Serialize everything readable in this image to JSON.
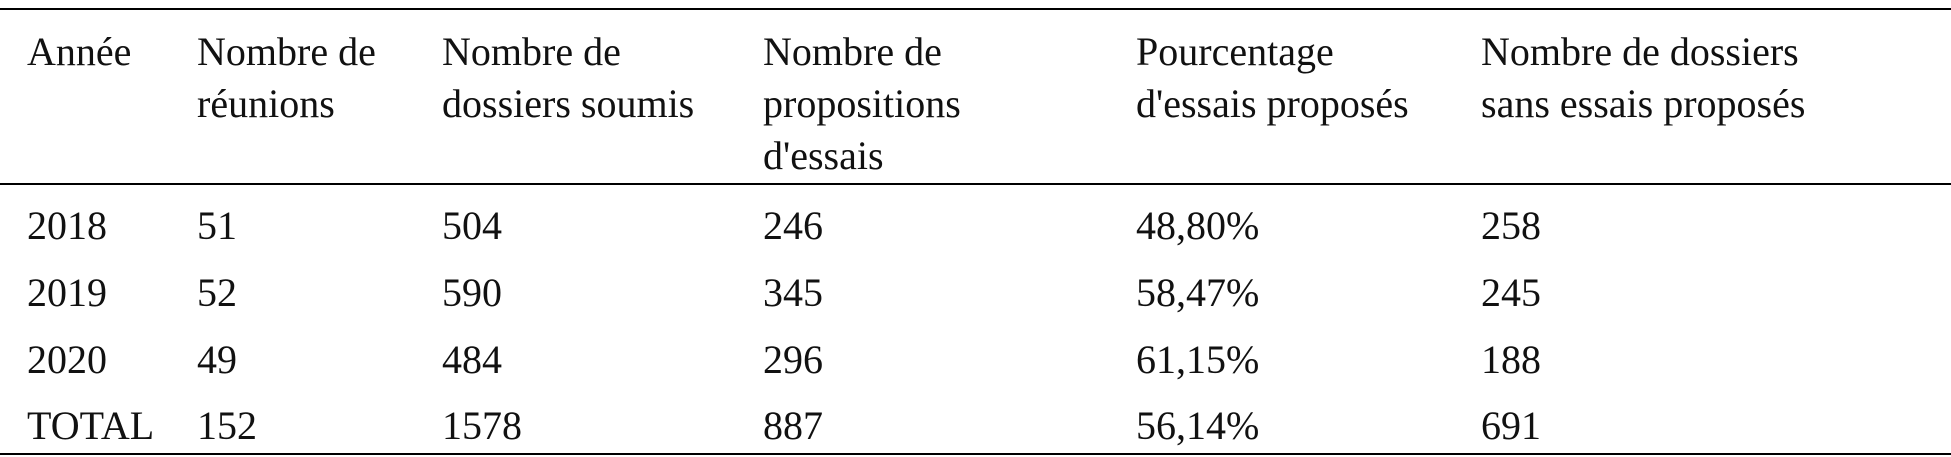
{
  "table": {
    "header": [
      [
        "Année"
      ],
      [
        "Nombre de",
        "réunions"
      ],
      [
        "Nombre de",
        "dossiers soumis"
      ],
      [
        "Nombre de",
        "propositions",
        "d'essais"
      ],
      [
        "Pourcentage",
        "d'essais proposés"
      ],
      [
        "Nombre de dossiers",
        "sans essais proposés"
      ]
    ],
    "rows": [
      [
        "2018",
        "51",
        "504",
        "246",
        "48,80%",
        "258"
      ],
      [
        "2019",
        "52",
        "590",
        "345",
        "58,47%",
        "245"
      ],
      [
        "2020",
        "49",
        "484",
        "296",
        "61,15%",
        "188"
      ],
      [
        "TOTAL",
        "152",
        "1578",
        "887",
        "56,14%",
        "691"
      ]
    ]
  }
}
